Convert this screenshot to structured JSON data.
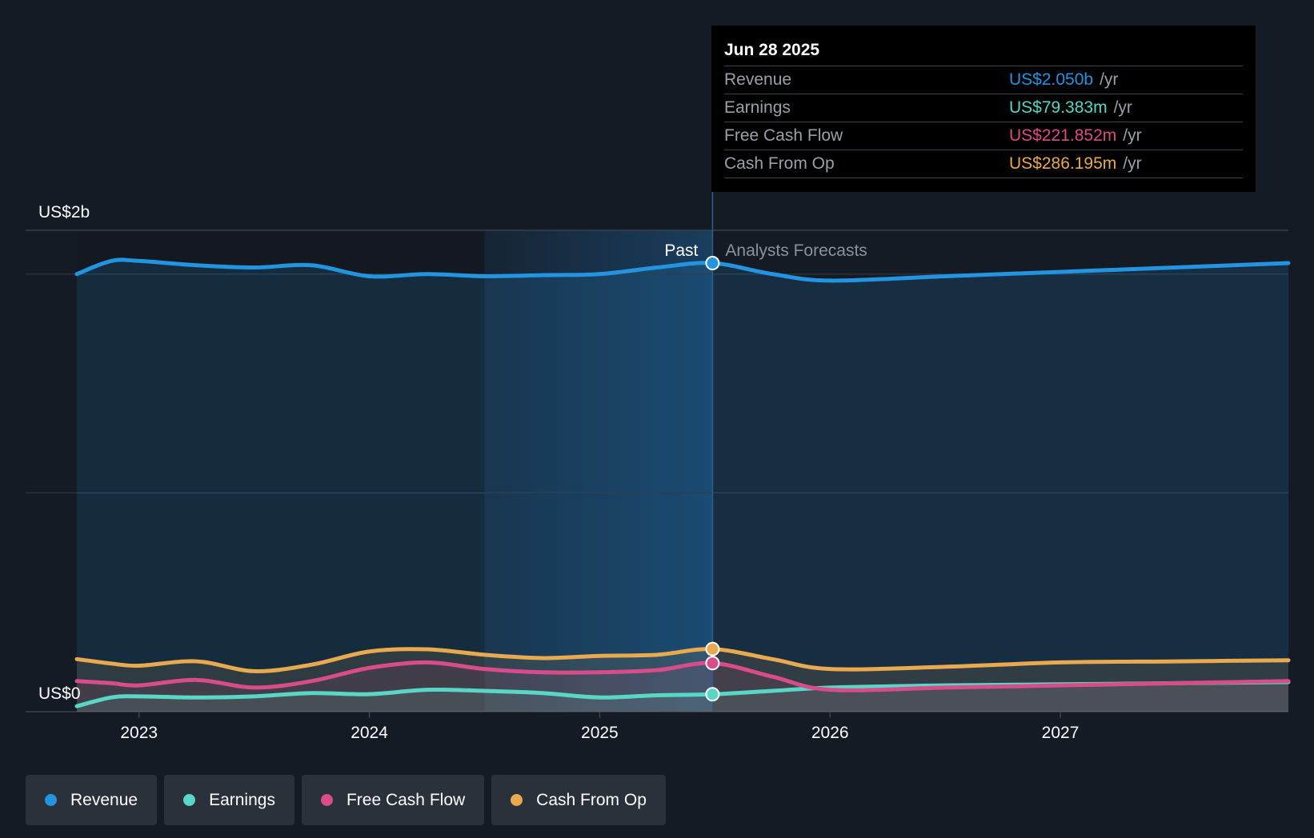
{
  "chart_data": {
    "type": "line",
    "y_axis": {
      "top_label": "US$2b",
      "bottom_label": "US$0",
      "ylim": [
        0,
        2200000000
      ]
    },
    "x_ticks": [
      "2023",
      "2024",
      "2025",
      "2026",
      "2027"
    ],
    "x_range": [
      2022.73,
      2027.99
    ],
    "divider": {
      "x": 2025.49,
      "past_label": "Past",
      "forecast_label": "Analysts Forecasts"
    },
    "highlight_start": 2024.5,
    "series": [
      {
        "name": "Revenue",
        "color": "#2394df",
        "points": [
          [
            2022.73,
            2000000000
          ],
          [
            2022.88,
            2060000000
          ],
          [
            2023.0,
            2060000000
          ],
          [
            2023.25,
            2040000000
          ],
          [
            2023.5,
            2030000000
          ],
          [
            2023.75,
            2040000000
          ],
          [
            2024.0,
            1990000000
          ],
          [
            2024.25,
            2000000000
          ],
          [
            2024.5,
            1990000000
          ],
          [
            2024.75,
            1995000000
          ],
          [
            2025.0,
            2000000000
          ],
          [
            2025.25,
            2030000000
          ],
          [
            2025.49,
            2050000000
          ],
          [
            2025.75,
            2000000000
          ],
          [
            2026.0,
            1970000000
          ],
          [
            2026.5,
            1990000000
          ],
          [
            2027.0,
            2010000000
          ],
          [
            2027.5,
            2030000000
          ],
          [
            2027.99,
            2050000000
          ]
        ]
      },
      {
        "name": "Earnings",
        "color": "#58d7c7",
        "points": [
          [
            2022.73,
            25000000
          ],
          [
            2022.88,
            65000000
          ],
          [
            2023.0,
            70000000
          ],
          [
            2023.25,
            65000000
          ],
          [
            2023.5,
            70000000
          ],
          [
            2023.75,
            85000000
          ],
          [
            2024.0,
            80000000
          ],
          [
            2024.25,
            100000000
          ],
          [
            2024.5,
            95000000
          ],
          [
            2024.75,
            85000000
          ],
          [
            2025.0,
            65000000
          ],
          [
            2025.25,
            75000000
          ],
          [
            2025.49,
            79383000
          ],
          [
            2025.75,
            95000000
          ],
          [
            2026.0,
            110000000
          ],
          [
            2026.5,
            120000000
          ],
          [
            2027.0,
            125000000
          ],
          [
            2027.5,
            130000000
          ],
          [
            2027.99,
            135000000
          ]
        ]
      },
      {
        "name": "Free Cash Flow",
        "color": "#d94c8a",
        "points": [
          [
            2022.73,
            140000000
          ],
          [
            2022.88,
            130000000
          ],
          [
            2023.0,
            120000000
          ],
          [
            2023.25,
            145000000
          ],
          [
            2023.5,
            110000000
          ],
          [
            2023.75,
            140000000
          ],
          [
            2024.0,
            200000000
          ],
          [
            2024.25,
            225000000
          ],
          [
            2024.5,
            195000000
          ],
          [
            2024.75,
            180000000
          ],
          [
            2025.0,
            180000000
          ],
          [
            2025.25,
            190000000
          ],
          [
            2025.49,
            221852000
          ],
          [
            2025.75,
            160000000
          ],
          [
            2026.0,
            100000000
          ],
          [
            2026.5,
            110000000
          ],
          [
            2027.0,
            120000000
          ],
          [
            2027.5,
            130000000
          ],
          [
            2027.99,
            140000000
          ]
        ]
      },
      {
        "name": "Cash From Op",
        "color": "#e9a94f",
        "points": [
          [
            2022.73,
            240000000
          ],
          [
            2022.88,
            220000000
          ],
          [
            2023.0,
            210000000
          ],
          [
            2023.25,
            230000000
          ],
          [
            2023.5,
            185000000
          ],
          [
            2023.75,
            215000000
          ],
          [
            2024.0,
            275000000
          ],
          [
            2024.25,
            285000000
          ],
          [
            2024.5,
            260000000
          ],
          [
            2024.75,
            245000000
          ],
          [
            2025.0,
            255000000
          ],
          [
            2025.25,
            260000000
          ],
          [
            2025.49,
            286195000
          ],
          [
            2025.75,
            240000000
          ],
          [
            2026.0,
            195000000
          ],
          [
            2026.5,
            205000000
          ],
          [
            2027.0,
            225000000
          ],
          [
            2027.5,
            230000000
          ],
          [
            2027.99,
            235000000
          ]
        ]
      }
    ]
  },
  "tooltip": {
    "date": "Jun 28 2025",
    "unit": "/yr",
    "rows": [
      {
        "label": "Revenue",
        "value": "US$2.050b",
        "color": "#2394df"
      },
      {
        "label": "Earnings",
        "value": "US$79.383m",
        "color": "#58d7c7"
      },
      {
        "label": "Free Cash Flow",
        "value": "US$221.852m",
        "color": "#d94c8a"
      },
      {
        "label": "Cash From Op",
        "value": "US$286.195m",
        "color": "#e9a94f"
      }
    ]
  },
  "legend": [
    {
      "label": "Revenue",
      "color": "#2394df"
    },
    {
      "label": "Earnings",
      "color": "#58d7c7"
    },
    {
      "label": "Free Cash Flow",
      "color": "#d94c8a"
    },
    {
      "label": "Cash From Op",
      "color": "#e9a94f"
    }
  ]
}
